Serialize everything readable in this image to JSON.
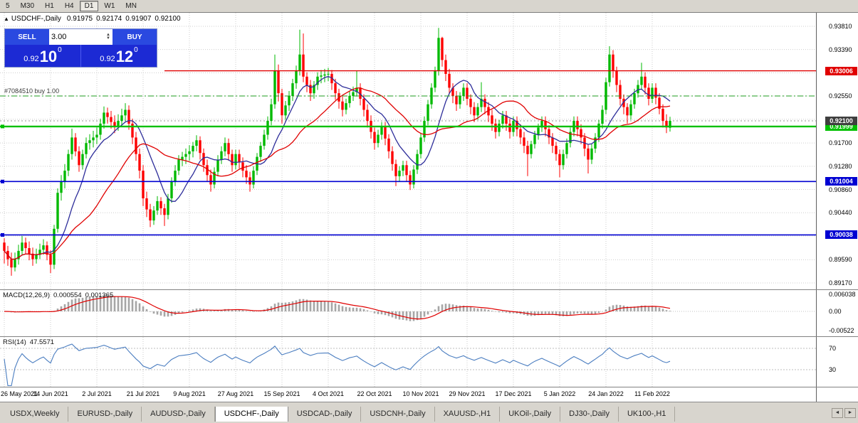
{
  "toolbar": {
    "buttons": [
      "5",
      "M30",
      "H1",
      "H4",
      "D1",
      "W1",
      "MN"
    ],
    "active": "D1"
  },
  "symbol_line": {
    "collapse": "▲",
    "symbol": "USDCHF-,Daily",
    "open": "0.91975",
    "high": "0.92174",
    "low": "0.91907",
    "close": "0.92100"
  },
  "quote_panel": {
    "sell_label": "SELL",
    "buy_label": "BUY",
    "volume": "3.00",
    "spin_up": "▲",
    "spin_down": "▼",
    "sell_price": {
      "base": "0.92",
      "big": "10",
      "sup": "0"
    },
    "buy_price": {
      "base": "0.92",
      "big": "12",
      "sup": "0"
    }
  },
  "chart_data": {
    "type": "candlestick",
    "title": "USDCHF-,Daily",
    "up_color": "#00b900",
    "down_color": "#fe0000",
    "price_axis_ticks": [
      "0.93810",
      "0.93390",
      "0.92970",
      "0.92550",
      "0.92130",
      "0.91700",
      "0.91280",
      "0.90860",
      "0.90440",
      "0.90020",
      "0.89590",
      "0.89170"
    ],
    "date_ticks": [
      "26 May 2021",
      "14 Jun 2021",
      "2 Jul 2021",
      "21 Jul 2021",
      "9 Aug 2021",
      "27 Aug 2021",
      "15 Sep 2021",
      "4 Oct 2021",
      "22 Oct 2021",
      "10 Nov 2021",
      "29 Nov 2021",
      "17 Dec 2021",
      "5 Jan 2022",
      "24 Jan 2022",
      "11 Feb 2022"
    ],
    "h_lines": [
      {
        "price": 0.93006,
        "label": "0.93006",
        "color": "#e00000",
        "width": 1.4,
        "start_index": 45
      },
      {
        "price": 0.91999,
        "label": "0.91999",
        "color": "#00c000",
        "width": 2.4,
        "start_index": 0
      },
      {
        "price": 0.91004,
        "label": "0.91004",
        "color": "#0000d2",
        "width": 1.6,
        "start_index": 0
      },
      {
        "price": 0.90038,
        "label": "0.90038",
        "color": "#0000d2",
        "width": 1.6,
        "start_index": 0
      }
    ],
    "current_price": {
      "value": 0.921,
      "label": "0.92100",
      "color": "#3f3f3f"
    },
    "order_line": {
      "price": 0.9255,
      "label": "#7084510 buy 1.00",
      "color": "#1e9b1e"
    },
    "moving_averages": [
      {
        "period": 10,
        "color": "#2d2d9a"
      },
      {
        "period": 25,
        "color": "#e00000"
      }
    ],
    "candles": [
      [
        0.899,
        0.8998,
        0.8952,
        0.8975
      ],
      [
        0.8975,
        0.8984,
        0.8948,
        0.896
      ],
      [
        0.896,
        0.8972,
        0.893,
        0.8945
      ],
      [
        0.8945,
        0.8972,
        0.8938,
        0.896
      ],
      [
        0.896,
        0.8986,
        0.895,
        0.8975
      ],
      [
        0.8975,
        0.9002,
        0.8968,
        0.899
      ],
      [
        0.899,
        0.8999,
        0.897,
        0.898
      ],
      [
        0.898,
        0.8992,
        0.8958,
        0.897
      ],
      [
        0.897,
        0.8981,
        0.8948,
        0.896
      ],
      [
        0.896,
        0.8979,
        0.8952,
        0.8968
      ],
      [
        0.8968,
        0.8988,
        0.896,
        0.8977
      ],
      [
        0.8977,
        0.8996,
        0.8968,
        0.8985
      ],
      [
        0.8985,
        0.8992,
        0.8958,
        0.8968
      ],
      [
        0.8968,
        0.8976,
        0.8935,
        0.895
      ],
      [
        0.895,
        0.9022,
        0.8942,
        0.9015
      ],
      [
        0.9015,
        0.9088,
        0.9008,
        0.908
      ],
      [
        0.908,
        0.9112,
        0.9066,
        0.91
      ],
      [
        0.91,
        0.9132,
        0.9088,
        0.912
      ],
      [
        0.912,
        0.9158,
        0.911,
        0.915
      ],
      [
        0.915,
        0.9196,
        0.914,
        0.918
      ],
      [
        0.918,
        0.9188,
        0.9146,
        0.9155
      ],
      [
        0.9155,
        0.9164,
        0.9118,
        0.913
      ],
      [
        0.913,
        0.9158,
        0.9122,
        0.915
      ],
      [
        0.915,
        0.918,
        0.9142,
        0.917
      ],
      [
        0.917,
        0.9186,
        0.9158,
        0.9175
      ],
      [
        0.9175,
        0.9192,
        0.9162,
        0.918
      ],
      [
        0.918,
        0.9198,
        0.9168,
        0.9185
      ],
      [
        0.9185,
        0.9214,
        0.9176,
        0.9205
      ],
      [
        0.9205,
        0.9236,
        0.9196,
        0.9225
      ],
      [
        0.9225,
        0.9234,
        0.9205,
        0.9217
      ],
      [
        0.9217,
        0.9228,
        0.9196,
        0.9208
      ],
      [
        0.9208,
        0.922,
        0.9188,
        0.92
      ],
      [
        0.92,
        0.9222,
        0.9192,
        0.921
      ],
      [
        0.921,
        0.9232,
        0.92,
        0.922
      ],
      [
        0.922,
        0.9242,
        0.921,
        0.923
      ],
      [
        0.923,
        0.9238,
        0.9194,
        0.9205
      ],
      [
        0.9205,
        0.9214,
        0.9168,
        0.918
      ],
      [
        0.918,
        0.919,
        0.9138,
        0.915
      ],
      [
        0.915,
        0.916,
        0.9106,
        0.912
      ],
      [
        0.912,
        0.913,
        0.9056,
        0.907
      ],
      [
        0.907,
        0.9082,
        0.9036,
        0.905
      ],
      [
        0.905,
        0.906,
        0.9018,
        0.903
      ],
      [
        0.903,
        0.9056,
        0.9022,
        0.9048
      ],
      [
        0.9048,
        0.9074,
        0.904,
        0.9065
      ],
      [
        0.9065,
        0.9072,
        0.904,
        0.9052
      ],
      [
        0.9052,
        0.906,
        0.902,
        0.904
      ],
      [
        0.904,
        0.9078,
        0.9032,
        0.907
      ],
      [
        0.907,
        0.9108,
        0.9062,
        0.91
      ],
      [
        0.91,
        0.913,
        0.9092,
        0.912
      ],
      [
        0.912,
        0.9148,
        0.9112,
        0.914
      ],
      [
        0.914,
        0.9154,
        0.9128,
        0.9145
      ],
      [
        0.9145,
        0.916,
        0.9132,
        0.915
      ],
      [
        0.915,
        0.9166,
        0.9138,
        0.9155
      ],
      [
        0.9155,
        0.9172,
        0.9144,
        0.9165
      ],
      [
        0.9165,
        0.9184,
        0.9155,
        0.9175
      ],
      [
        0.9175,
        0.9182,
        0.914,
        0.9152
      ],
      [
        0.9152,
        0.916,
        0.9118,
        0.913
      ],
      [
        0.913,
        0.914,
        0.91,
        0.9112
      ],
      [
        0.9112,
        0.9122,
        0.9082,
        0.9095
      ],
      [
        0.9095,
        0.9126,
        0.9088,
        0.9118
      ],
      [
        0.9118,
        0.9148,
        0.911,
        0.914
      ],
      [
        0.914,
        0.9164,
        0.9132,
        0.9155
      ],
      [
        0.9155,
        0.918,
        0.9146,
        0.917
      ],
      [
        0.917,
        0.9178,
        0.9138,
        0.915
      ],
      [
        0.915,
        0.9158,
        0.9118,
        0.913
      ],
      [
        0.913,
        0.9158,
        0.9122,
        0.915
      ],
      [
        0.915,
        0.9158,
        0.9124,
        0.9135
      ],
      [
        0.9135,
        0.9144,
        0.9108,
        0.912
      ],
      [
        0.912,
        0.913,
        0.9096,
        0.9108
      ],
      [
        0.9108,
        0.9118,
        0.9082,
        0.9095
      ],
      [
        0.9095,
        0.9128,
        0.9088,
        0.912
      ],
      [
        0.912,
        0.9152,
        0.9112,
        0.9145
      ],
      [
        0.9145,
        0.9172,
        0.9136,
        0.9165
      ],
      [
        0.9165,
        0.9194,
        0.9158,
        0.9185
      ],
      [
        0.9185,
        0.9218,
        0.9176,
        0.921
      ],
      [
        0.921,
        0.925,
        0.9202,
        0.924
      ],
      [
        0.924,
        0.933,
        0.9232,
        0.93
      ],
      [
        0.93,
        0.9312,
        0.9245,
        0.926
      ],
      [
        0.926,
        0.9268,
        0.9205,
        0.922
      ],
      [
        0.922,
        0.9246,
        0.9212,
        0.9238
      ],
      [
        0.9238,
        0.9264,
        0.9228,
        0.9255
      ],
      [
        0.9255,
        0.9286,
        0.9246,
        0.9278
      ],
      [
        0.9278,
        0.931,
        0.9268,
        0.93
      ],
      [
        0.93,
        0.9375,
        0.9292,
        0.933
      ],
      [
        0.933,
        0.9368,
        0.928,
        0.929
      ],
      [
        0.929,
        0.9298,
        0.9262,
        0.9275
      ],
      [
        0.9275,
        0.9284,
        0.9246,
        0.926
      ],
      [
        0.926,
        0.9282,
        0.925,
        0.9275
      ],
      [
        0.9275,
        0.9298,
        0.9266,
        0.929
      ],
      [
        0.929,
        0.9302,
        0.9278,
        0.9292
      ],
      [
        0.9292,
        0.9304,
        0.928,
        0.9294
      ],
      [
        0.9294,
        0.9306,
        0.9282,
        0.9295
      ],
      [
        0.9295,
        0.9302,
        0.9266,
        0.9278
      ],
      [
        0.9278,
        0.9286,
        0.9248,
        0.926
      ],
      [
        0.926,
        0.9268,
        0.9232,
        0.9245
      ],
      [
        0.9245,
        0.9254,
        0.9218,
        0.923
      ],
      [
        0.923,
        0.925,
        0.9222,
        0.9242
      ],
      [
        0.9242,
        0.9264,
        0.9234,
        0.9255
      ],
      [
        0.9255,
        0.9272,
        0.9246,
        0.9262
      ],
      [
        0.9262,
        0.93,
        0.9254,
        0.927
      ],
      [
        0.927,
        0.9278,
        0.9238,
        0.925
      ],
      [
        0.925,
        0.9258,
        0.9218,
        0.923
      ],
      [
        0.923,
        0.924,
        0.9198,
        0.921
      ],
      [
        0.921,
        0.922,
        0.9178,
        0.919
      ],
      [
        0.919,
        0.9198,
        0.9158,
        0.917
      ],
      [
        0.917,
        0.9194,
        0.9162,
        0.9185
      ],
      [
        0.9185,
        0.9208,
        0.9176,
        0.92
      ],
      [
        0.92,
        0.9208,
        0.9166,
        0.9178
      ],
      [
        0.9178,
        0.9186,
        0.9142,
        0.9155
      ],
      [
        0.9155,
        0.9164,
        0.912,
        0.9132
      ],
      [
        0.9132,
        0.914,
        0.9092,
        0.911
      ],
      [
        0.911,
        0.9128,
        0.91,
        0.912
      ],
      [
        0.912,
        0.9138,
        0.911,
        0.913
      ],
      [
        0.913,
        0.9138,
        0.91,
        0.9112
      ],
      [
        0.9112,
        0.912,
        0.9085,
        0.9095
      ],
      [
        0.9095,
        0.913,
        0.9088,
        0.9122
      ],
      [
        0.9122,
        0.9158,
        0.9114,
        0.915
      ],
      [
        0.915,
        0.9188,
        0.9142,
        0.918
      ],
      [
        0.918,
        0.9218,
        0.9172,
        0.921
      ],
      [
        0.921,
        0.9248,
        0.9202,
        0.924
      ],
      [
        0.924,
        0.9278,
        0.9232,
        0.927
      ],
      [
        0.927,
        0.9308,
        0.9262,
        0.93
      ],
      [
        0.93,
        0.9378,
        0.9292,
        0.936
      ],
      [
        0.936,
        0.9362,
        0.9308,
        0.932
      ],
      [
        0.932,
        0.933,
        0.9282,
        0.9295
      ],
      [
        0.9295,
        0.9304,
        0.9258,
        0.927
      ],
      [
        0.927,
        0.9278,
        0.9242,
        0.9255
      ],
      [
        0.9255,
        0.9264,
        0.9228,
        0.924
      ],
      [
        0.924,
        0.9262,
        0.9232,
        0.9255
      ],
      [
        0.9255,
        0.9278,
        0.9246,
        0.927
      ],
      [
        0.927,
        0.9278,
        0.9238,
        0.925
      ],
      [
        0.925,
        0.9258,
        0.9222,
        0.9235
      ],
      [
        0.9235,
        0.9244,
        0.9208,
        0.922
      ],
      [
        0.922,
        0.9242,
        0.9212,
        0.9235
      ],
      [
        0.9235,
        0.928,
        0.9226,
        0.925
      ],
      [
        0.925,
        0.9258,
        0.9222,
        0.9235
      ],
      [
        0.9235,
        0.9244,
        0.9208,
        0.922
      ],
      [
        0.922,
        0.923,
        0.9192,
        0.9205
      ],
      [
        0.9205,
        0.9214,
        0.9178,
        0.919
      ],
      [
        0.919,
        0.9212,
        0.9182,
        0.9205
      ],
      [
        0.9205,
        0.9228,
        0.9196,
        0.922
      ],
      [
        0.922,
        0.9228,
        0.9192,
        0.9205
      ],
      [
        0.9205,
        0.9214,
        0.9178,
        0.919
      ],
      [
        0.919,
        0.9218,
        0.9182,
        0.921
      ],
      [
        0.921,
        0.9218,
        0.9182,
        0.9195
      ],
      [
        0.9195,
        0.9204,
        0.9168,
        0.918
      ],
      [
        0.918,
        0.919,
        0.9152,
        0.9165
      ],
      [
        0.9165,
        0.9174,
        0.911,
        0.915
      ],
      [
        0.915,
        0.9174,
        0.9142,
        0.9168
      ],
      [
        0.9168,
        0.9192,
        0.916,
        0.9185
      ],
      [
        0.9185,
        0.9205,
        0.9176,
        0.9198
      ],
      [
        0.9198,
        0.9218,
        0.919,
        0.921
      ],
      [
        0.921,
        0.9218,
        0.9182,
        0.9195
      ],
      [
        0.9195,
        0.9202,
        0.9168,
        0.918
      ],
      [
        0.918,
        0.9188,
        0.9152,
        0.9165
      ],
      [
        0.9165,
        0.9172,
        0.9138,
        0.915
      ],
      [
        0.915,
        0.9158,
        0.9108,
        0.913
      ],
      [
        0.913,
        0.9158,
        0.9122,
        0.915
      ],
      [
        0.915,
        0.9178,
        0.9142,
        0.917
      ],
      [
        0.917,
        0.9198,
        0.9162,
        0.919
      ],
      [
        0.919,
        0.9218,
        0.9182,
        0.921
      ],
      [
        0.921,
        0.9218,
        0.9182,
        0.9195
      ],
      [
        0.9195,
        0.9204,
        0.9168,
        0.918
      ],
      [
        0.918,
        0.9188,
        0.9146,
        0.916
      ],
      [
        0.916,
        0.9168,
        0.9115,
        0.914
      ],
      [
        0.914,
        0.9168,
        0.9132,
        0.916
      ],
      [
        0.916,
        0.9188,
        0.9152,
        0.918
      ],
      [
        0.918,
        0.9212,
        0.9172,
        0.9205
      ],
      [
        0.9205,
        0.9238,
        0.9196,
        0.923
      ],
      [
        0.923,
        0.9288,
        0.9222,
        0.928
      ],
      [
        0.928,
        0.9345,
        0.9272,
        0.933
      ],
      [
        0.933,
        0.9338,
        0.9288,
        0.93
      ],
      [
        0.93,
        0.9308,
        0.9262,
        0.9275
      ],
      [
        0.9275,
        0.9284,
        0.9238,
        0.925
      ],
      [
        0.925,
        0.9258,
        0.9222,
        0.9235
      ],
      [
        0.9235,
        0.9242,
        0.9205,
        0.922
      ],
      [
        0.922,
        0.9248,
        0.9212,
        0.924
      ],
      [
        0.924,
        0.9268,
        0.9232,
        0.926
      ],
      [
        0.926,
        0.9284,
        0.9252,
        0.9275
      ],
      [
        0.9275,
        0.9315,
        0.9266,
        0.929
      ],
      [
        0.929,
        0.9298,
        0.9258,
        0.927
      ],
      [
        0.927,
        0.9278,
        0.9238,
        0.925
      ],
      [
        0.925,
        0.9278,
        0.9242,
        0.927
      ],
      [
        0.927,
        0.9278,
        0.924,
        0.9252
      ],
      [
        0.9252,
        0.926,
        0.9222,
        0.9232
      ],
      [
        0.9232,
        0.924,
        0.9198,
        0.921
      ],
      [
        0.921,
        0.9222,
        0.9188,
        0.9198
      ],
      [
        0.91975,
        0.92174,
        0.91907,
        0.921
      ]
    ]
  },
  "macd": {
    "label": "MACD(12,26,9)",
    "value1": "0.000554",
    "value2": "0.001365",
    "axis_labels": [
      "0.006038",
      "0.00",
      "-0.00522"
    ],
    "fast": 12,
    "slow": 26,
    "signal": 9,
    "histogram_color": "#a6a6a6",
    "signal_color": "#e00000"
  },
  "rsi": {
    "label": "RSI(14)",
    "value": "47.5571",
    "axis_labels": [
      "70",
      "30"
    ],
    "levels": [
      70,
      30
    ],
    "period": 14,
    "line_color": "#4a7dc0"
  },
  "tabs": {
    "items": [
      "USDX,Weekly",
      "EURUSD-,Daily",
      "AUDUSD-,Daily",
      "USDCHF-,Daily",
      "USDCAD-,Daily",
      "USDCNH-,Daily",
      "XAUUSD-,H1",
      "UKOil-,Daily",
      "DJ30-,Daily",
      "UK100-,H1"
    ],
    "active_index": 3,
    "scroll_left": "◄",
    "scroll_right": "►"
  }
}
